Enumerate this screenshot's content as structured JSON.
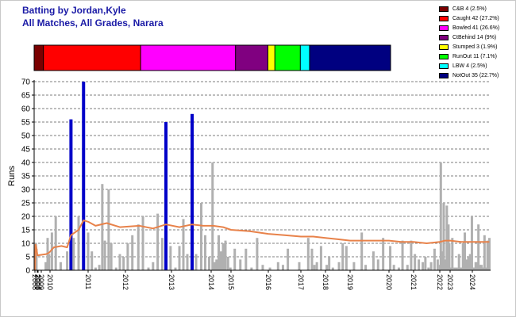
{
  "titles": {
    "line1": "Batting by Jordan,Kyle",
    "line2": "All Matches, All Grades, Narara"
  },
  "colors": {
    "title": "#1a1aa6",
    "bar_out": "#b0b0b0",
    "bar_notout": "#0000c8",
    "average_line": "#e8824a"
  },
  "chart_data": [
    {
      "type": "stacked-bar",
      "title": "",
      "segments": [
        {
          "label": "C&B 4 (2.5%)",
          "name": "C&B",
          "count": 4,
          "percent": 2.5,
          "color": "#7a0000"
        },
        {
          "label": "Caught 42 (27.2%)",
          "name": "Caught",
          "count": 42,
          "percent": 27.2,
          "color": "#ff0000"
        },
        {
          "label": "Bowled 41 (26.6%)",
          "name": "Bowled",
          "count": 41,
          "percent": 26.6,
          "color": "#ff00ff"
        },
        {
          "label": "CtBehind 14 (9%)",
          "name": "CtBehind",
          "count": 14,
          "percent": 9.0,
          "color": "#800080"
        },
        {
          "label": "Stumped 3 (1.9%)",
          "name": "Stumped",
          "count": 3,
          "percent": 1.9,
          "color": "#ffff00"
        },
        {
          "label": "RunOut 11 (7.1%)",
          "name": "RunOut",
          "count": 11,
          "percent": 7.1,
          "color": "#00ff00"
        },
        {
          "label": "LBW 4 (2.5%)",
          "name": "LBW",
          "count": 4,
          "percent": 2.5,
          "color": "#00ffff"
        },
        {
          "label": "NotOut 35 (22.7%)",
          "name": "NotOut",
          "count": 35,
          "percent": 22.7,
          "color": "#000080"
        }
      ]
    },
    {
      "type": "bar",
      "title": "",
      "xlabel": "",
      "ylabel": "Runs",
      "ylim": [
        0,
        70
      ],
      "yticks": [
        "0",
        "5",
        "10",
        "15",
        "20",
        "25",
        "30",
        "35",
        "40",
        "45",
        "50",
        "55",
        "60",
        "65",
        "70"
      ],
      "grid": true,
      "xticks": [
        "2008",
        "2009",
        "2010",
        "2011",
        "2012",
        "2013",
        "2014",
        "2015",
        "2016",
        "2017",
        "2018",
        "2019",
        "2020",
        "2021",
        "2022",
        "2023",
        "2024"
      ],
      "innings": [
        {
          "x": 2008.05,
          "runs": 3,
          "not_out": false
        },
        {
          "x": 2008.18,
          "runs": 10,
          "not_out": false
        },
        {
          "x": 2008.27,
          "runs": 8,
          "not_out": false
        },
        {
          "x": 2009.55,
          "runs": 3,
          "not_out": false
        },
        {
          "x": 2009.75,
          "runs": 12,
          "not_out": false
        },
        {
          "x": 2009.9,
          "runs": 6,
          "not_out": false
        },
        {
          "x": 2010.05,
          "runs": 14,
          "not_out": false
        },
        {
          "x": 2010.15,
          "runs": 20,
          "not_out": false
        },
        {
          "x": 2010.28,
          "runs": 3,
          "not_out": false
        },
        {
          "x": 2010.45,
          "runs": 7,
          "not_out": false
        },
        {
          "x": 2010.55,
          "runs": 56,
          "not_out": true
        },
        {
          "x": 2010.62,
          "runs": 12,
          "not_out": false
        },
        {
          "x": 2010.75,
          "runs": 20,
          "not_out": false
        },
        {
          "x": 2010.88,
          "runs": 70,
          "not_out": true
        },
        {
          "x": 2011.0,
          "runs": 14,
          "not_out": false
        },
        {
          "x": 2011.1,
          "runs": 7,
          "not_out": false
        },
        {
          "x": 2011.2,
          "runs": 1,
          "not_out": false
        },
        {
          "x": 2011.3,
          "runs": 2,
          "not_out": false
        },
        {
          "x": 2011.38,
          "runs": 32,
          "not_out": false
        },
        {
          "x": 2011.45,
          "runs": 11,
          "not_out": false
        },
        {
          "x": 2011.55,
          "runs": 30,
          "not_out": false
        },
        {
          "x": 2011.62,
          "runs": 10,
          "not_out": false
        },
        {
          "x": 2011.75,
          "runs": 1,
          "not_out": false
        },
        {
          "x": 2011.85,
          "runs": 6,
          "not_out": false
        },
        {
          "x": 2011.95,
          "runs": 5,
          "not_out": false
        },
        {
          "x": 2012.05,
          "runs": 10,
          "not_out": false
        },
        {
          "x": 2012.15,
          "runs": 13,
          "not_out": false
        },
        {
          "x": 2012.28,
          "runs": 17,
          "not_out": false
        },
        {
          "x": 2012.38,
          "runs": 20,
          "not_out": false
        },
        {
          "x": 2012.5,
          "runs": 1,
          "not_out": false
        },
        {
          "x": 2012.6,
          "runs": 3,
          "not_out": false
        },
        {
          "x": 2012.7,
          "runs": 21,
          "not_out": false
        },
        {
          "x": 2012.8,
          "runs": 12,
          "not_out": false
        },
        {
          "x": 2012.88,
          "runs": 55,
          "not_out": true
        },
        {
          "x": 2012.98,
          "runs": 9,
          "not_out": false
        },
        {
          "x": 2013.1,
          "runs": 1,
          "not_out": false
        },
        {
          "x": 2013.2,
          "runs": 9,
          "not_out": false
        },
        {
          "x": 2013.3,
          "runs": 19,
          "not_out": false
        },
        {
          "x": 2013.4,
          "runs": 6,
          "not_out": false
        },
        {
          "x": 2013.52,
          "runs": 58,
          "not_out": true
        },
        {
          "x": 2013.62,
          "runs": 6,
          "not_out": false
        },
        {
          "x": 2013.75,
          "runs": 25,
          "not_out": false
        },
        {
          "x": 2013.85,
          "runs": 13,
          "not_out": false
        },
        {
          "x": 2013.95,
          "runs": 5,
          "not_out": false
        },
        {
          "x": 2014.07,
          "runs": 40,
          "not_out": false
        },
        {
          "x": 2014.17,
          "runs": 3,
          "not_out": false
        },
        {
          "x": 2014.27,
          "runs": 4,
          "not_out": false
        },
        {
          "x": 2014.38,
          "runs": 13,
          "not_out": false
        },
        {
          "x": 2014.48,
          "runs": 7,
          "not_out": false
        },
        {
          "x": 2014.6,
          "runs": 10,
          "not_out": false
        },
        {
          "x": 2014.72,
          "runs": 11,
          "not_out": false
        },
        {
          "x": 2014.85,
          "runs": 5,
          "not_out": false
        },
        {
          "x": 2014.97,
          "runs": 1,
          "not_out": false
        },
        {
          "x": 2015.1,
          "runs": 8,
          "not_out": false
        },
        {
          "x": 2015.25,
          "runs": 4,
          "not_out": false
        },
        {
          "x": 2015.4,
          "runs": 8,
          "not_out": false
        },
        {
          "x": 2015.55,
          "runs": 1,
          "not_out": false
        },
        {
          "x": 2015.7,
          "runs": 12,
          "not_out": false
        },
        {
          "x": 2015.85,
          "runs": 2,
          "not_out": false
        },
        {
          "x": 2016.05,
          "runs": 1,
          "not_out": false
        },
        {
          "x": 2016.3,
          "runs": 3,
          "not_out": false
        },
        {
          "x": 2016.45,
          "runs": 2,
          "not_out": false
        },
        {
          "x": 2016.6,
          "runs": 8,
          "not_out": false
        },
        {
          "x": 2016.95,
          "runs": 3,
          "not_out": false
        },
        {
          "x": 2017.3,
          "runs": 12,
          "not_out": false
        },
        {
          "x": 2017.45,
          "runs": 8,
          "not_out": false
        },
        {
          "x": 2017.55,
          "runs": 2,
          "not_out": false
        },
        {
          "x": 2017.65,
          "runs": 3,
          "not_out": false
        },
        {
          "x": 2017.82,
          "runs": 9,
          "not_out": false
        },
        {
          "x": 2018.05,
          "runs": 2,
          "not_out": false
        },
        {
          "x": 2018.15,
          "runs": 5,
          "not_out": false
        },
        {
          "x": 2018.3,
          "runs": 1,
          "not_out": false
        },
        {
          "x": 2018.55,
          "runs": 3,
          "not_out": false
        },
        {
          "x": 2018.7,
          "runs": 10,
          "not_out": false
        },
        {
          "x": 2018.85,
          "runs": 9,
          "not_out": false
        },
        {
          "x": 2019.1,
          "runs": 3,
          "not_out": false
        },
        {
          "x": 2019.3,
          "runs": 14,
          "not_out": false
        },
        {
          "x": 2019.4,
          "runs": 2,
          "not_out": false
        },
        {
          "x": 2019.6,
          "runs": 7,
          "not_out": false
        },
        {
          "x": 2019.72,
          "runs": 4,
          "not_out": false
        },
        {
          "x": 2019.85,
          "runs": 12,
          "not_out": false
        },
        {
          "x": 2020.05,
          "runs": 9,
          "not_out": false
        },
        {
          "x": 2020.2,
          "runs": 2,
          "not_out": false
        },
        {
          "x": 2020.4,
          "runs": 1,
          "not_out": false
        },
        {
          "x": 2020.55,
          "runs": 11,
          "not_out": false
        },
        {
          "x": 2020.75,
          "runs": 2,
          "not_out": false
        },
        {
          "x": 2020.9,
          "runs": 11,
          "not_out": false
        },
        {
          "x": 2021.05,
          "runs": 6,
          "not_out": false
        },
        {
          "x": 2021.2,
          "runs": 4,
          "not_out": false
        },
        {
          "x": 2021.35,
          "runs": 3,
          "not_out": false
        },
        {
          "x": 2021.45,
          "runs": 5,
          "not_out": false
        },
        {
          "x": 2021.57,
          "runs": 1,
          "not_out": false
        },
        {
          "x": 2021.67,
          "runs": 3,
          "not_out": false
        },
        {
          "x": 2021.8,
          "runs": 8,
          "not_out": false
        },
        {
          "x": 2021.92,
          "runs": 4,
          "not_out": false
        },
        {
          "x": 2022.02,
          "runs": 2,
          "not_out": false
        },
        {
          "x": 2022.1,
          "runs": 40,
          "not_out": false
        },
        {
          "x": 2022.18,
          "runs": 1,
          "not_out": false
        },
        {
          "x": 2022.28,
          "runs": 7,
          "not_out": false
        },
        {
          "x": 2022.38,
          "runs": 25,
          "not_out": false
        },
        {
          "x": 2022.48,
          "runs": 2,
          "not_out": false
        },
        {
          "x": 2022.58,
          "runs": 4,
          "not_out": false
        },
        {
          "x": 2022.68,
          "runs": 24,
          "not_out": false
        },
        {
          "x": 2022.76,
          "runs": 6,
          "not_out": false
        },
        {
          "x": 2022.84,
          "runs": 17,
          "not_out": false
        },
        {
          "x": 2022.92,
          "runs": 10,
          "not_out": false
        },
        {
          "x": 2023.02,
          "runs": 1,
          "not_out": false
        },
        {
          "x": 2023.1,
          "runs": 12,
          "not_out": false
        },
        {
          "x": 2023.2,
          "runs": 1,
          "not_out": false
        },
        {
          "x": 2023.3,
          "runs": 1,
          "not_out": false
        },
        {
          "x": 2023.4,
          "runs": 6,
          "not_out": false
        },
        {
          "x": 2023.5,
          "runs": 1,
          "not_out": false
        },
        {
          "x": 2023.58,
          "runs": 10,
          "not_out": false
        },
        {
          "x": 2023.66,
          "runs": 14,
          "not_out": false
        },
        {
          "x": 2023.74,
          "runs": 4,
          "not_out": false
        },
        {
          "x": 2023.82,
          "runs": 5,
          "not_out": false
        },
        {
          "x": 2023.9,
          "runs": 6,
          "not_out": false
        },
        {
          "x": 2023.98,
          "runs": 20,
          "not_out": false
        },
        {
          "x": 2024.06,
          "runs": 1,
          "not_out": false
        },
        {
          "x": 2024.14,
          "runs": 1,
          "not_out": false
        },
        {
          "x": 2024.22,
          "runs": 3,
          "not_out": false
        },
        {
          "x": 2024.3,
          "runs": 3,
          "not_out": false
        },
        {
          "x": 2024.4,
          "runs": 17,
          "not_out": false
        },
        {
          "x": 2024.5,
          "runs": 2,
          "not_out": false
        },
        {
          "x": 2024.6,
          "runs": 2,
          "not_out": false
        },
        {
          "x": 2024.7,
          "runs": 1,
          "not_out": false
        },
        {
          "x": 2024.8,
          "runs": 13,
          "not_out": false
        },
        {
          "x": 2024.9,
          "runs": 1,
          "not_out": false
        },
        {
          "x": 2025.0,
          "runs": 11,
          "not_out": false
        },
        {
          "x": 2025.12,
          "runs": 12,
          "not_out": false
        }
      ],
      "average_series": [
        {
          "x": 2008.0,
          "y": 0
        },
        {
          "x": 2008.1,
          "y": 9.5
        },
        {
          "x": 2008.25,
          "y": 8.5
        },
        {
          "x": 2008.45,
          "y": 5.5
        },
        {
          "x": 2009.6,
          "y": 6
        },
        {
          "x": 2009.9,
          "y": 6.5
        },
        {
          "x": 2010.1,
          "y": 8.5
        },
        {
          "x": 2010.3,
          "y": 9
        },
        {
          "x": 2010.45,
          "y": 8.5
        },
        {
          "x": 2010.55,
          "y": 13
        },
        {
          "x": 2010.75,
          "y": 15
        },
        {
          "x": 2010.88,
          "y": 18.5
        },
        {
          "x": 2011.0,
          "y": 18
        },
        {
          "x": 2011.2,
          "y": 16.5
        },
        {
          "x": 2011.5,
          "y": 17.5
        },
        {
          "x": 2011.85,
          "y": 16
        },
        {
          "x": 2012.3,
          "y": 16.5
        },
        {
          "x": 2012.6,
          "y": 15.5
        },
        {
          "x": 2012.88,
          "y": 17
        },
        {
          "x": 2013.2,
          "y": 16
        },
        {
          "x": 2013.52,
          "y": 17
        },
        {
          "x": 2013.8,
          "y": 16.5
        },
        {
          "x": 2014.1,
          "y": 16.5
        },
        {
          "x": 2014.6,
          "y": 16
        },
        {
          "x": 2015.0,
          "y": 15
        },
        {
          "x": 2015.5,
          "y": 14.5
        },
        {
          "x": 2016.0,
          "y": 13.5
        },
        {
          "x": 2016.5,
          "y": 13
        },
        {
          "x": 2017.0,
          "y": 12.5
        },
        {
          "x": 2017.5,
          "y": 12.5
        },
        {
          "x": 2018.0,
          "y": 12
        },
        {
          "x": 2018.5,
          "y": 11.5
        },
        {
          "x": 2019.0,
          "y": 11
        },
        {
          "x": 2019.5,
          "y": 11
        },
        {
          "x": 2020.0,
          "y": 11
        },
        {
          "x": 2020.5,
          "y": 10.5
        },
        {
          "x": 2021.0,
          "y": 10.5
        },
        {
          "x": 2021.5,
          "y": 10
        },
        {
          "x": 2022.0,
          "y": 10.5
        },
        {
          "x": 2022.5,
          "y": 11
        },
        {
          "x": 2023.0,
          "y": 11
        },
        {
          "x": 2023.5,
          "y": 10.5
        },
        {
          "x": 2024.0,
          "y": 10.5
        },
        {
          "x": 2024.5,
          "y": 10.5
        },
        {
          "x": 2025.12,
          "y": 10.5
        }
      ]
    }
  ]
}
